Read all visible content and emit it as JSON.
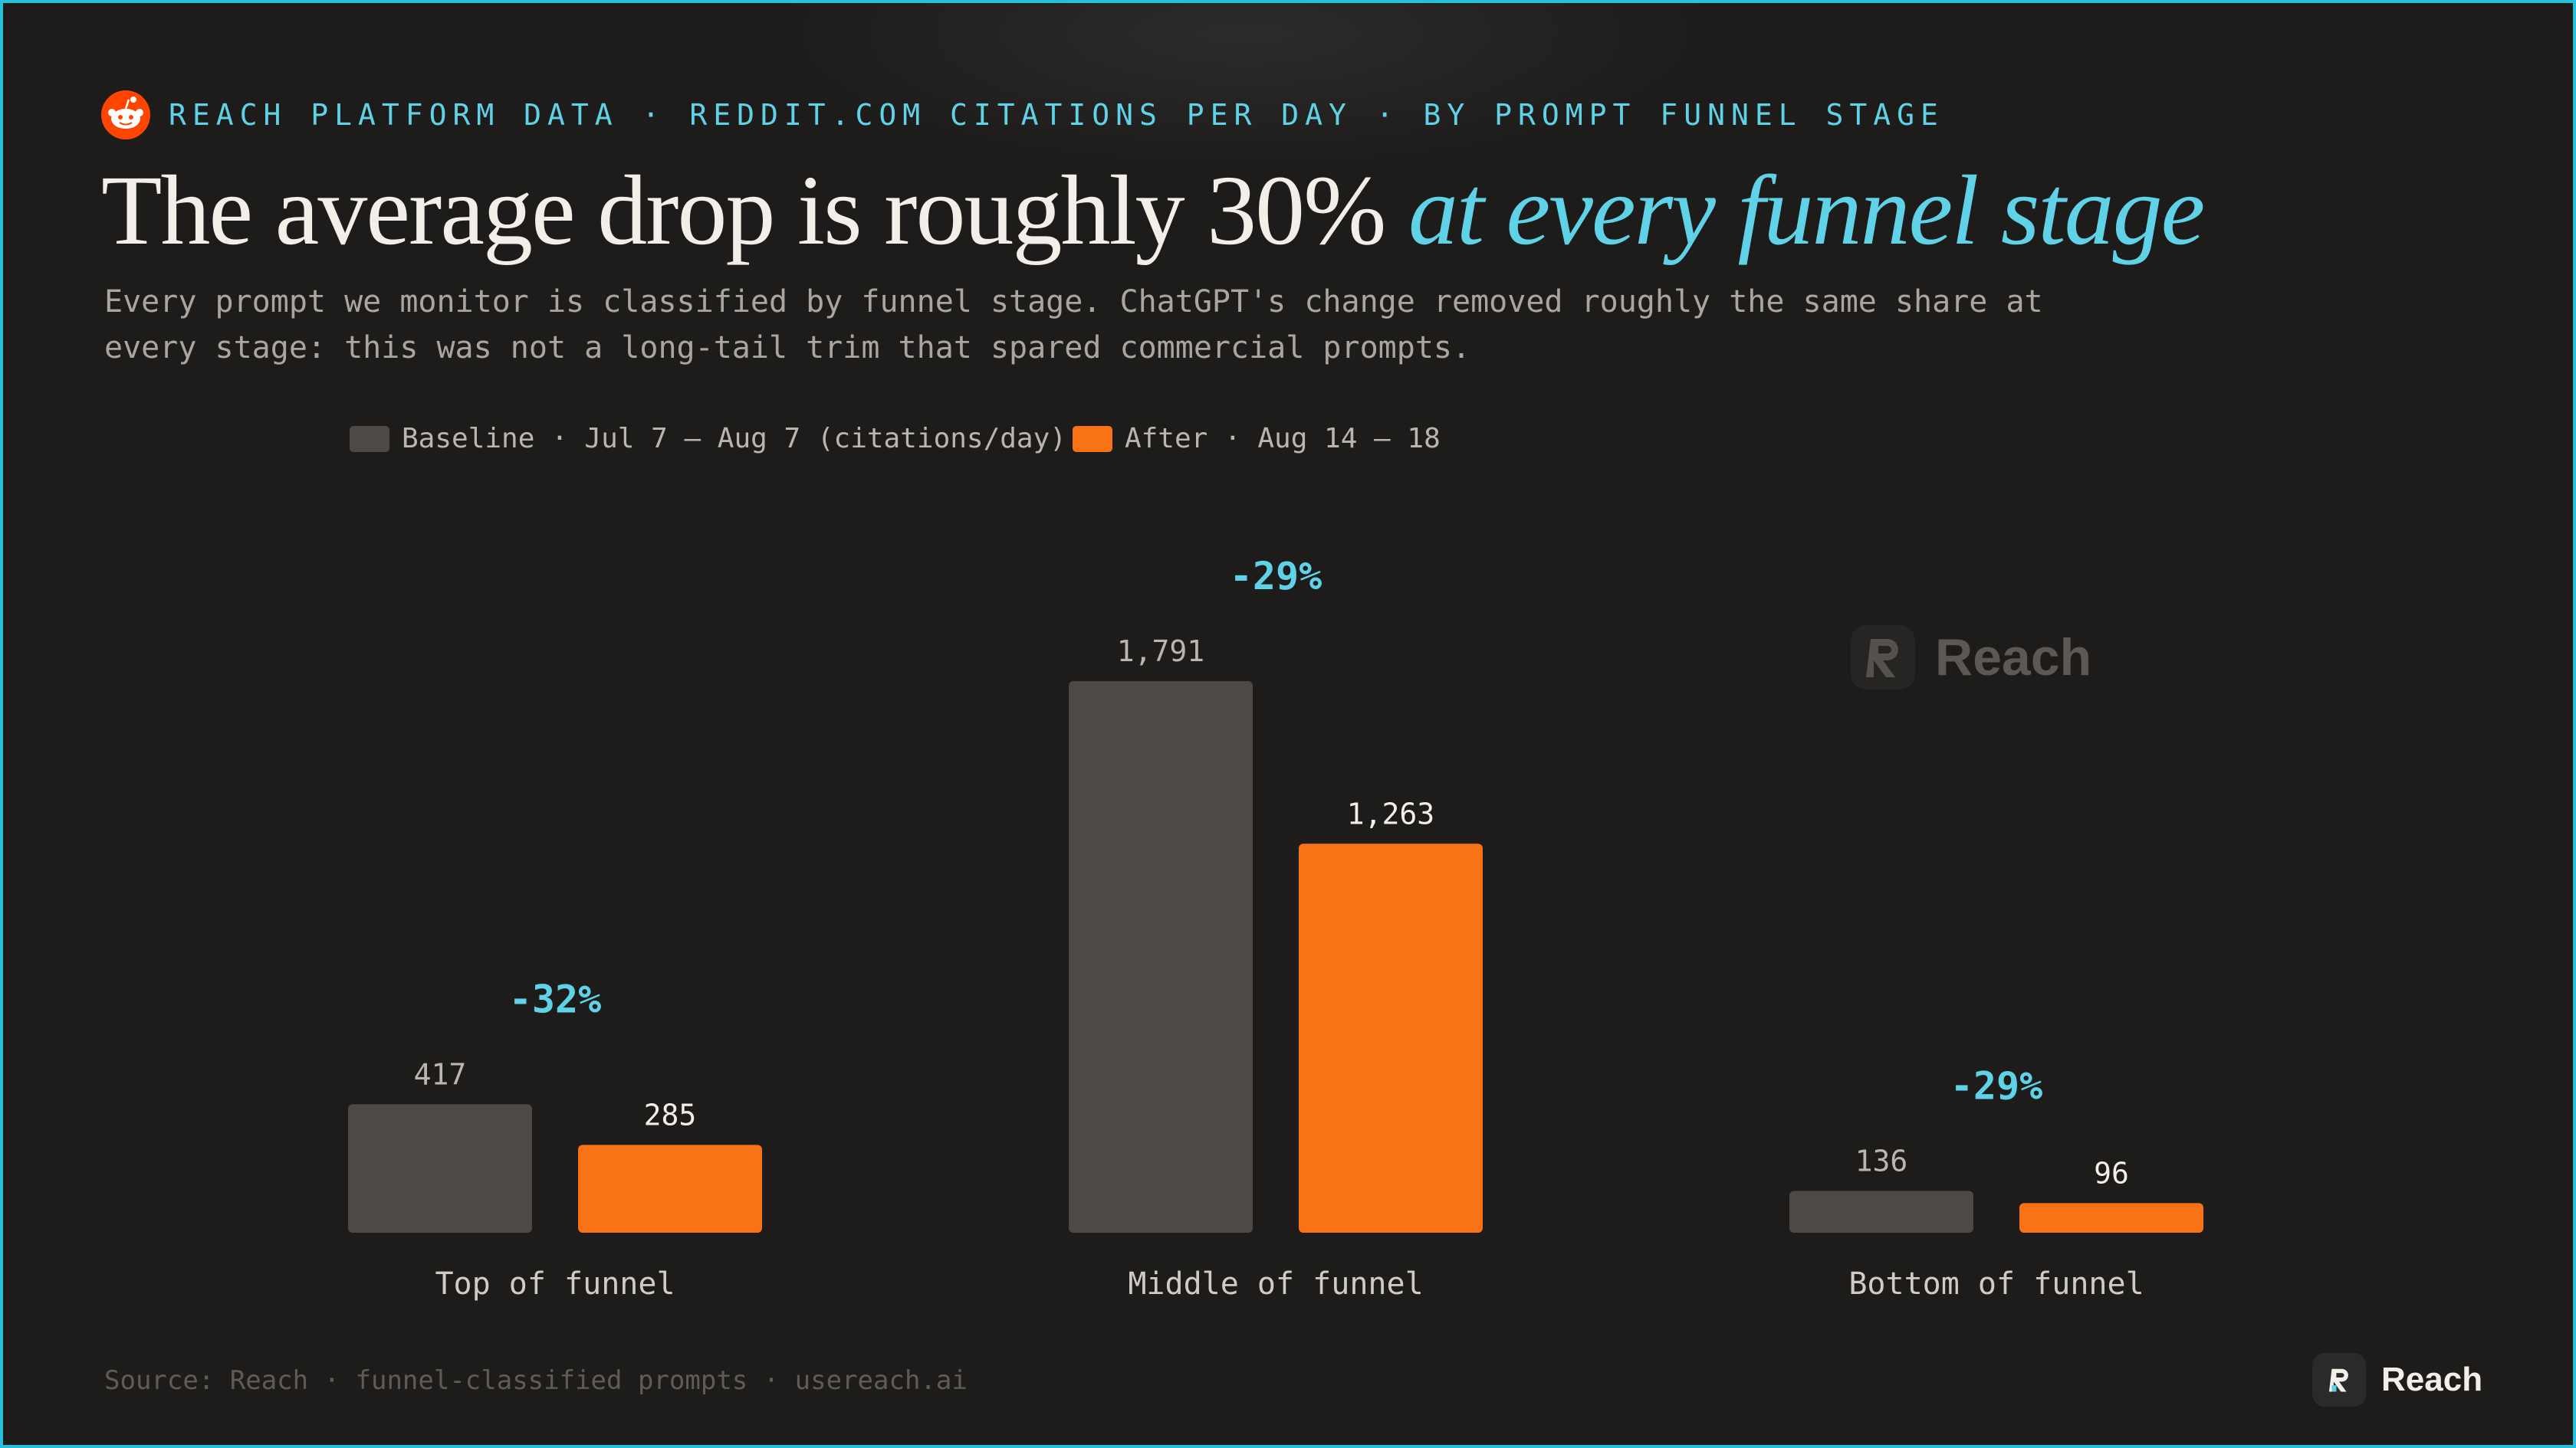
{
  "eyebrow": "REACH PLATFORM DATA · REDDIT.COM CITATIONS PER DAY · BY PROMPT FUNNEL STAGE",
  "title": {
    "main": "The average drop is roughly 30% ",
    "accent": "at every funnel stage"
  },
  "subtitle": "Every prompt we monitor is classified by funnel stage. ChatGPT's change removed roughly the same share at\nevery stage: this was not a long-tail trim that spared commercial prompts.",
  "legend": {
    "baseline": "Baseline · Jul 7 – Aug 7 (citations/day)",
    "after": "After · Aug 14 – 18"
  },
  "watermark": "Reach",
  "source": "Source: Reach · funnel-classified prompts · usereach.ai",
  "footer_brand": "Reach",
  "colors": {
    "baseline": "#4d4946",
    "after": "#f97316",
    "accent": "#5fd2e8",
    "frame": "#27c0d8",
    "background": "#1e1c1a"
  },
  "icons": [
    "reddit-icon",
    "reach-logo-icon"
  ],
  "chart_data": {
    "type": "bar",
    "categories": [
      "Top of funnel",
      "Middle of funnel",
      "Bottom of funnel"
    ],
    "series": [
      {
        "name": "Baseline · Jul 7 – Aug 7 (citations/day)",
        "values": [
          417,
          1791,
          136
        ],
        "labels": [
          "417",
          "1,791",
          "136"
        ]
      },
      {
        "name": "After · Aug 14 – 18",
        "values": [
          285,
          1263,
          96
        ],
        "labels": [
          "285",
          "1,263",
          "96"
        ]
      }
    ],
    "changes": [
      "-32%",
      "-29%",
      "-29%"
    ],
    "ylim": [
      0,
      1791
    ],
    "grid": false,
    "legend_position": "top-left"
  }
}
